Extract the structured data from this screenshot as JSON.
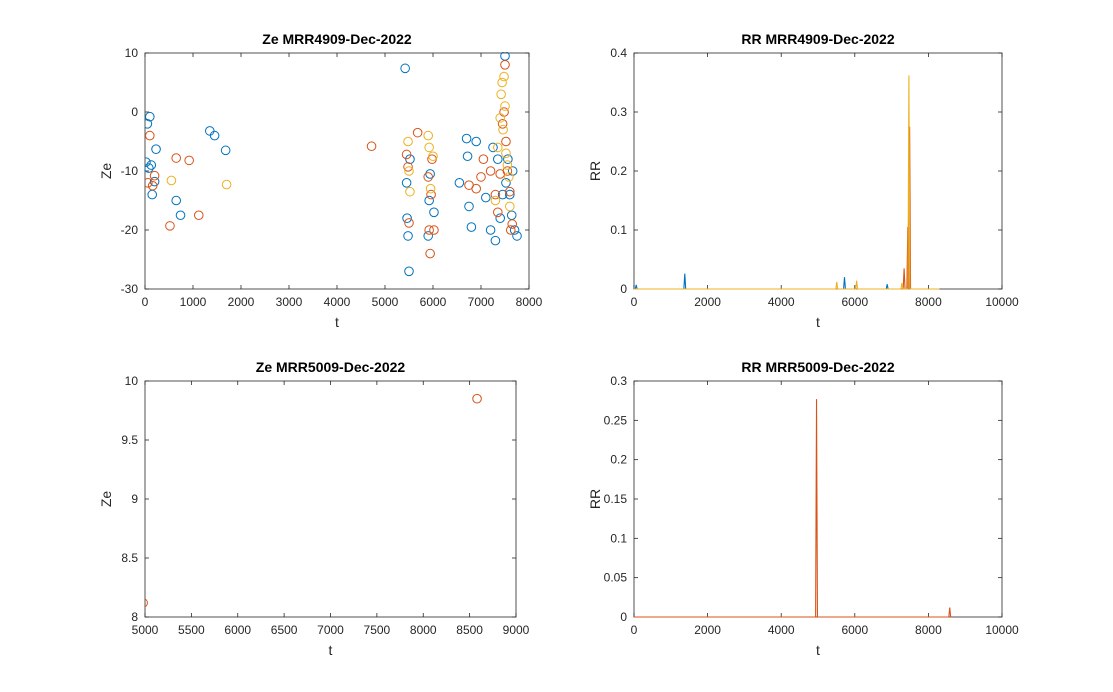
{
  "chart_data": [
    {
      "type": "scatter",
      "title": "Ze MRR4909-Dec-2022",
      "xlabel": "t",
      "ylabel": "Ze",
      "xlim": [
        0,
        8000
      ],
      "ylim": [
        -30,
        10
      ],
      "xticks": [
        0,
        1000,
        2000,
        3000,
        4000,
        5000,
        6000,
        7000,
        8000
      ],
      "yticks": [
        -30,
        -20,
        -10,
        0,
        10
      ],
      "grid": false,
      "series": [
        {
          "color": "#0072BD",
          "points": [
            [
              20,
              -8.5
            ],
            [
              50,
              -2
            ],
            [
              80,
              -9.5
            ],
            [
              100,
              -0.8
            ],
            [
              130,
              -9
            ],
            [
              150,
              -14
            ],
            [
              200,
              -11.8
            ],
            [
              230,
              -6.3
            ],
            [
              650,
              -15
            ],
            [
              740,
              -17.5
            ],
            [
              1350,
              -3.2
            ],
            [
              1450,
              -4
            ],
            [
              1680,
              -6.5
            ],
            [
              5420,
              7.4
            ],
            [
              5450,
              -12
            ],
            [
              5460,
              -18
            ],
            [
              5480,
              -21
            ],
            [
              5500,
              -27
            ],
            [
              5520,
              -8
            ],
            [
              5900,
              -21
            ],
            [
              5920,
              -15
            ],
            [
              5940,
              -10.5
            ],
            [
              6020,
              -17
            ],
            [
              6550,
              -12
            ],
            [
              6700,
              -4.5
            ],
            [
              6720,
              -7.5
            ],
            [
              6750,
              -16
            ],
            [
              6800,
              -19.5
            ],
            [
              6900,
              -5
            ],
            [
              7100,
              -14.5
            ],
            [
              7200,
              -20
            ],
            [
              7250,
              -6
            ],
            [
              7300,
              -21.8
            ],
            [
              7350,
              -8
            ],
            [
              7400,
              -18
            ],
            [
              7450,
              -14
            ],
            [
              7500,
              9.5
            ],
            [
              7520,
              -12
            ],
            [
              7560,
              -8
            ],
            [
              7600,
              -14
            ],
            [
              7640,
              -17.5
            ],
            [
              7660,
              -10
            ],
            [
              7700,
              -20
            ],
            [
              7750,
              -21
            ]
          ]
        },
        {
          "color": "#D95319",
          "points": [
            [
              60,
              -12
            ],
            [
              100,
              -4
            ],
            [
              160,
              -12.5
            ],
            [
              200,
              -10.8
            ],
            [
              520,
              -19.3
            ],
            [
              650,
              -7.8
            ],
            [
              920,
              -8.2
            ],
            [
              1120,
              -17.5
            ],
            [
              4720,
              -5.8
            ],
            [
              5450,
              -7.2
            ],
            [
              5480,
              -9.3
            ],
            [
              5500,
              -18.8
            ],
            [
              5680,
              -3.5
            ],
            [
              5900,
              -11
            ],
            [
              5920,
              -20
            ],
            [
              5940,
              -24
            ],
            [
              5960,
              -14
            ],
            [
              5980,
              -8
            ],
            [
              6020,
              -20
            ],
            [
              6750,
              -12.4
            ],
            [
              6900,
              -13
            ],
            [
              7000,
              -11
            ],
            [
              7050,
              -8
            ],
            [
              7200,
              -10
            ],
            [
              7300,
              -14
            ],
            [
              7350,
              -17
            ],
            [
              7400,
              -10.5
            ],
            [
              7450,
              -2
            ],
            [
              7480,
              0
            ],
            [
              7500,
              8
            ],
            [
              7520,
              -5
            ],
            [
              7550,
              -10
            ],
            [
              7600,
              -13.5
            ],
            [
              7620,
              -20
            ],
            [
              7650,
              -19
            ]
          ]
        },
        {
          "color": "#EDB120",
          "points": [
            [
              550,
              -11.6
            ],
            [
              1700,
              -12.3
            ],
            [
              5480,
              -5
            ],
            [
              5500,
              -10
            ],
            [
              5520,
              -13.5
            ],
            [
              5900,
              -4
            ],
            [
              5920,
              -6
            ],
            [
              5950,
              -13
            ],
            [
              6000,
              -7.5
            ],
            [
              7300,
              -15
            ],
            [
              7350,
              -6
            ],
            [
              7400,
              -1
            ],
            [
              7420,
              3
            ],
            [
              7440,
              5
            ],
            [
              7460,
              -3
            ],
            [
              7480,
              6
            ],
            [
              7500,
              1
            ],
            [
              7520,
              -7
            ],
            [
              7550,
              -9
            ],
            [
              7580,
              -11
            ],
            [
              7600,
              -16
            ]
          ]
        }
      ]
    },
    {
      "type": "line",
      "title": "RR MRR4909-Dec-2022",
      "xlabel": "t",
      "ylabel": "RR",
      "xlim": [
        0,
        10000
      ],
      "ylim": [
        0,
        0.4
      ],
      "xticks": [
        0,
        2000,
        4000,
        6000,
        8000,
        10000
      ],
      "yticks": [
        0,
        0.1,
        0.2,
        0.3,
        0.4
      ],
      "grid": false,
      "series": [
        {
          "color": "#0072BD",
          "spikes": [
            [
              60,
              0.007
            ],
            [
              1380,
              0.026
            ],
            [
              5720,
              0.02
            ],
            [
              6880,
              0.008
            ],
            [
              7450,
              0.05
            ]
          ]
        },
        {
          "color": "#D95319",
          "spikes": [
            [
              7340,
              0.035
            ],
            [
              7440,
              0.105
            ],
            [
              7490,
              0.275
            ]
          ]
        },
        {
          "color": "#EDB120",
          "spikes": [
            [
              5510,
              0.012
            ],
            [
              6050,
              0.014
            ],
            [
              7280,
              0.01
            ],
            [
              7470,
              0.362
            ]
          ]
        }
      ],
      "baseline_end": [
        8300,
        8300,
        8300
      ]
    },
    {
      "type": "scatter",
      "title": "Ze MRR5009-Dec-2022",
      "xlabel": "t",
      "ylabel": "Ze",
      "xlim": [
        5000,
        9000
      ],
      "ylim": [
        8,
        10
      ],
      "xticks": [
        5000,
        5500,
        6000,
        6500,
        7000,
        7500,
        8000,
        8500,
        9000
      ],
      "yticks": [
        8,
        8.5,
        9,
        9.5,
        10
      ],
      "grid": false,
      "series": [
        {
          "color": "#D95319",
          "points": [
            [
              4980,
              8.12
            ],
            [
              8580,
              9.85
            ]
          ]
        }
      ]
    },
    {
      "type": "line",
      "title": "RR MRR5009-Dec-2022",
      "xlabel": "t",
      "ylabel": "RR",
      "xlim": [
        0,
        10000
      ],
      "ylim": [
        0,
        0.3
      ],
      "xticks": [
        0,
        2000,
        4000,
        6000,
        8000,
        10000
      ],
      "yticks": [
        0,
        0.05,
        0.1,
        0.15,
        0.2,
        0.25,
        0.3
      ],
      "grid": false,
      "series": [
        {
          "color": "#D95319",
          "spikes": [
            [
              4960,
              0.277
            ],
            [
              8580,
              0.012
            ]
          ]
        }
      ],
      "baseline_end": [
        8600
      ]
    }
  ]
}
